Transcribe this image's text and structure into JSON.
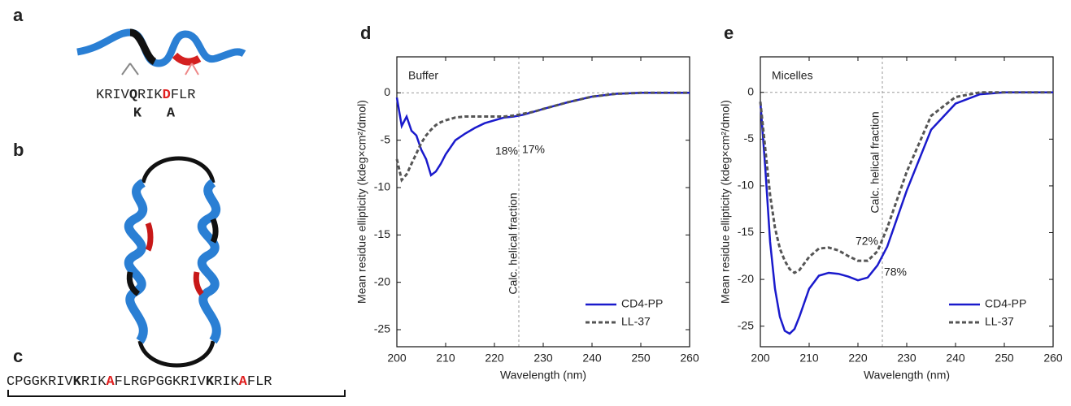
{
  "panels": {
    "a": {
      "label": "a",
      "sequence": [
        "KRIV",
        "Q",
        "RIK",
        "D",
        "FLR"
      ],
      "mutations": [
        "K",
        "A"
      ]
    },
    "b": {
      "label": "b"
    },
    "c": {
      "label": "c",
      "sequence": [
        "CPGGKRIV",
        "K",
        "RIK",
        "A",
        "FLRGPGGKRIV",
        "K",
        "RIK",
        "A",
        "FLR"
      ]
    }
  },
  "chart_data": [
    {
      "type": "line",
      "panel_label": "d",
      "title": "Buffer",
      "x_label": "Wavelength (nm)",
      "y_label": "Mean residue ellipticity (kdeg×cm²/dmol)",
      "x": [
        200,
        201,
        202,
        203,
        204,
        205,
        206,
        207,
        208,
        209,
        210,
        212,
        214,
        216,
        218,
        220,
        222,
        224,
        226,
        228,
        230,
        235,
        240,
        245,
        250,
        255,
        260
      ],
      "series": [
        {
          "name": "CD4-PP",
          "color": "#1a1acc",
          "line_style": "solid",
          "values": [
            -0.5,
            -3.5,
            -2.5,
            -4,
            -4.5,
            -6,
            -7,
            -8.7,
            -8.3,
            -7.5,
            -6.5,
            -5,
            -4.3,
            -3.7,
            -3.2,
            -2.9,
            -2.6,
            -2.5,
            -2.3,
            -2,
            -1.7,
            -1,
            -0.4,
            -0.1,
            0,
            0,
            0
          ]
        },
        {
          "name": "LL-37",
          "color": "#555555",
          "line_style": "dashed",
          "values": [
            -7,
            -9.2,
            -8.6,
            -7.5,
            -6.4,
            -5.3,
            -4.5,
            -3.9,
            -3.4,
            -3.1,
            -2.9,
            -2.6,
            -2.5,
            -2.5,
            -2.5,
            -2.5,
            -2.5,
            -2.4,
            -2.2,
            -2,
            -1.7,
            -1,
            -0.4,
            -0.1,
            0,
            0,
            0
          ]
        }
      ],
      "xlim": [
        200,
        260
      ],
      "xticks": [
        200,
        210,
        220,
        230,
        240,
        250,
        260
      ],
      "ylim": [
        -26.8,
        3.8
      ],
      "yticks": [
        -25,
        -20,
        -15,
        -10,
        -5,
        0
      ],
      "ref_x": 225,
      "ref_y": 0,
      "ref_label": "Calc. helical fraction",
      "annotations": [
        {
          "text": "18%",
          "color": "#707070"
        },
        {
          "text": "17%",
          "color": "#1a1acc"
        }
      ],
      "legend": "lower right"
    },
    {
      "type": "line",
      "panel_label": "e",
      "title": "Micelles",
      "x_label": "Wavelength (nm)",
      "y_label": "Mean residue ellipticity (kdeg×cm²/dmol)",
      "x": [
        200,
        201,
        202,
        203,
        204,
        205,
        206,
        207,
        208,
        209,
        210,
        212,
        214,
        216,
        218,
        220,
        222,
        224,
        226,
        228,
        230,
        235,
        240,
        245,
        250,
        255,
        260
      ],
      "series": [
        {
          "name": "CD4-PP",
          "color": "#1a1acc",
          "line_style": "solid",
          "values": [
            -1,
            -8,
            -16,
            -21,
            -24,
            -25.5,
            -25.8,
            -25.3,
            -24,
            -22.5,
            -21,
            -19.6,
            -19.3,
            -19.4,
            -19.7,
            -20.1,
            -19.8,
            -18.5,
            -16.5,
            -13.5,
            -10.5,
            -4,
            -1.2,
            -0.2,
            0,
            0,
            0
          ]
        },
        {
          "name": "LL-37",
          "color": "#555555",
          "line_style": "dashed",
          "values": [
            -1,
            -6,
            -11,
            -14.5,
            -16.7,
            -18,
            -18.9,
            -19.3,
            -19,
            -18.3,
            -17.6,
            -16.7,
            -16.6,
            -16.9,
            -17.5,
            -18,
            -18,
            -17,
            -14.5,
            -11.5,
            -8.5,
            -2.5,
            -0.5,
            0,
            0,
            0,
            0
          ]
        }
      ],
      "xlim": [
        200,
        260
      ],
      "xticks": [
        200,
        210,
        220,
        230,
        240,
        250,
        260
      ],
      "ylim": [
        -27.2,
        3.8
      ],
      "yticks": [
        -25,
        -20,
        -15,
        -10,
        -5,
        0
      ],
      "ref_x": 225,
      "ref_y": 0,
      "ref_label": "Calc. helical fraction",
      "annotations": [
        {
          "text": "72%",
          "color": "#707070"
        },
        {
          "text": "78%",
          "color": "#1a1acc"
        }
      ],
      "legend": "lower right"
    }
  ]
}
